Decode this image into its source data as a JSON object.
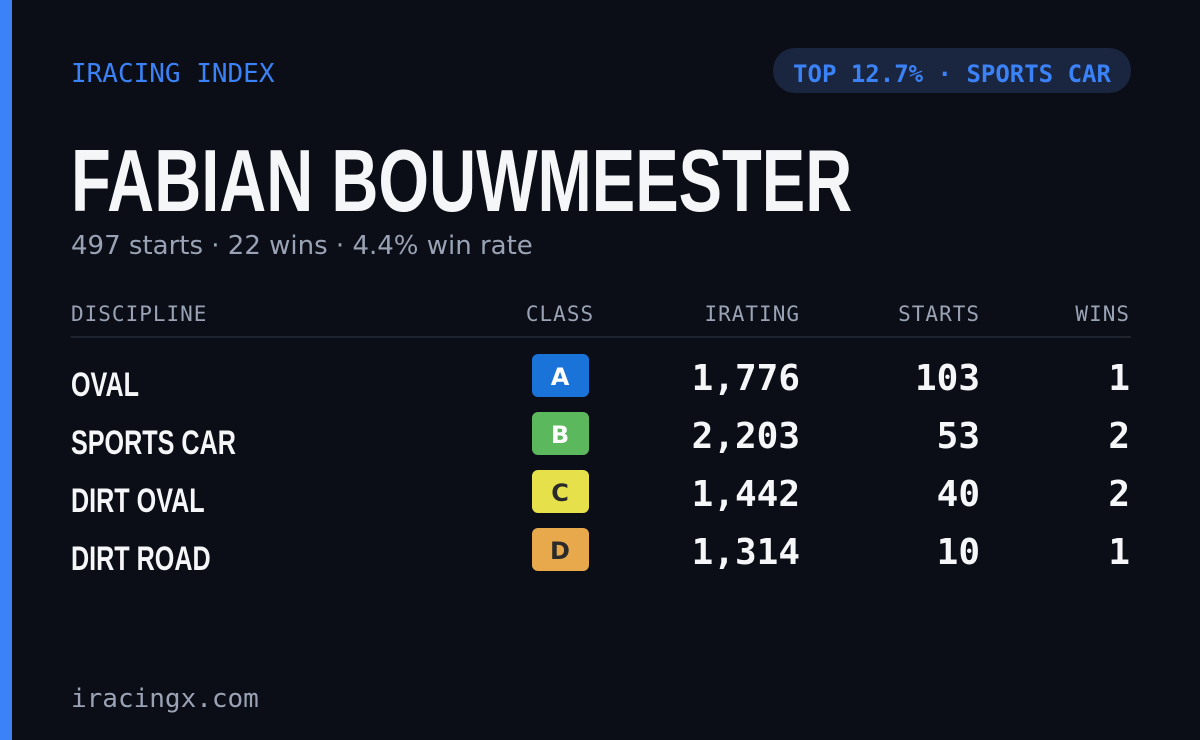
{
  "header": {
    "brand": "IRACING INDEX",
    "badge": "TOP 12.7% · SPORTS CAR"
  },
  "driver": {
    "name": "FABIAN BOUWMEESTER",
    "summary": "497 starts · 22 wins · 4.4% win rate"
  },
  "table": {
    "columns": [
      "DISCIPLINE",
      "CLASS",
      "IRATING",
      "STARTS",
      "WINS"
    ],
    "rows": [
      [
        "OVAL",
        "A",
        "1,776",
        "103",
        "1"
      ],
      [
        "SPORTS CAR",
        "B",
        "2,203",
        "53",
        "2"
      ],
      [
        "DIRT OVAL",
        "C",
        "1,442",
        "40",
        "2"
      ],
      [
        "DIRT ROAD",
        "D",
        "1,314",
        "10",
        "1"
      ]
    ]
  },
  "footer": {
    "site": "iracingx.com"
  }
}
